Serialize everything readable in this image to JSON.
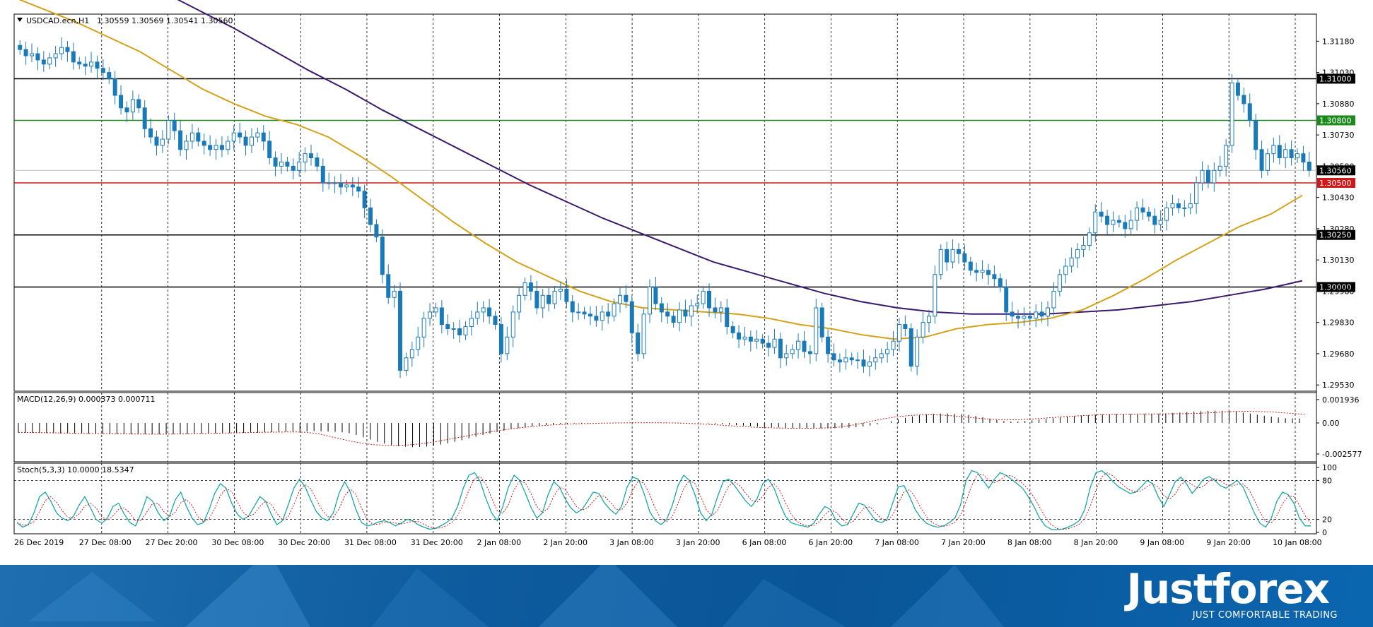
{
  "header": {
    "symbol_label": "USDCAD.ecn,H1",
    "ohlc": "1.30559 1.30569 1.30541 1.30560"
  },
  "chart_data": [
    {
      "type": "line",
      "panel": "price",
      "price_axis_ticks": [
        "1.31180",
        "1.31030",
        "1.30880",
        "1.30730",
        "1.30580",
        "1.30430",
        "1.30280",
        "1.30130",
        "1.29980",
        "1.29830",
        "1.29680",
        "1.29530"
      ],
      "ylim": [
        1.295,
        1.3131
      ],
      "levels": [
        {
          "value": 1.31,
          "label": "1.31000",
          "color": "#000000"
        },
        {
          "value": 1.308,
          "label": "1.30800",
          "color": "#1a8a1a"
        },
        {
          "value": 1.305,
          "label": "1.30500",
          "color": "#d01818"
        },
        {
          "value": 1.3025,
          "label": "1.30250",
          "color": "#000000"
        },
        {
          "value": 1.3,
          "label": "1.30000",
          "color": "#000000"
        }
      ],
      "current_price": {
        "value": 1.3056,
        "label": "1.30560"
      },
      "candle_color": "#1a7ab8",
      "close": [
        1.3114,
        1.3111,
        1.3112,
        1.3109,
        1.3107,
        1.311,
        1.3112,
        1.3115,
        1.3113,
        1.3108,
        1.3107,
        1.3106,
        1.3108,
        1.3105,
        1.3103,
        1.31,
        1.3092,
        1.3086,
        1.3084,
        1.309,
        1.3086,
        1.3076,
        1.3072,
        1.3068,
        1.3071,
        1.308,
        1.3075,
        1.3066,
        1.307,
        1.3074,
        1.307,
        1.3068,
        1.3066,
        1.3068,
        1.3066,
        1.307,
        1.3074,
        1.3072,
        1.3068,
        1.3072,
        1.3074,
        1.307,
        1.3062,
        1.3058,
        1.306,
        1.3058,
        1.3056,
        1.306,
        1.3064,
        1.3062,
        1.3058,
        1.305,
        1.305,
        1.305,
        1.3048,
        1.3049,
        1.3048,
        1.3046,
        1.3038,
        1.303,
        1.3024,
        1.3006,
        1.2995,
        1.2998,
        1.296,
        1.2966,
        1.297,
        1.2976,
        1.2985,
        1.2988,
        1.299,
        1.2982,
        1.298,
        1.298,
        1.2977,
        1.2981,
        1.2985,
        1.2988,
        1.299,
        1.2986,
        1.2982,
        1.2968,
        1.2976,
        1.2988,
        1.2996,
        1.3002,
        1.2998,
        1.299,
        1.2996,
        1.2992,
        1.2998,
        1.2999,
        1.2993,
        1.2988,
        1.2988,
        1.2987,
        1.2986,
        1.2984,
        1.2988,
        1.2986,
        1.2992,
        1.2996,
        1.2993,
        1.2978,
        1.2968,
        1.2987,
        1.3,
        1.2992,
        1.2988,
        1.2986,
        1.2983,
        1.2989,
        1.2986,
        1.2991,
        1.2992,
        1.2998,
        1.299,
        1.2988,
        1.299,
        1.2981,
        1.2978,
        1.2975,
        1.2976,
        1.2974,
        1.2975,
        1.2973,
        1.2971,
        1.2975,
        1.2966,
        1.2968,
        1.297,
        1.2974,
        1.2969,
        1.2968,
        1.299,
        1.2976,
        1.2968,
        1.2965,
        1.2964,
        1.2966,
        1.2965,
        1.2965,
        1.2962,
        1.2964,
        1.2966,
        1.2968,
        1.297,
        1.2974,
        1.2982,
        1.298,
        1.2962,
        1.2976,
        1.2983,
        1.2986,
        1.3006,
        1.3018,
        1.3012,
        1.3018,
        1.3016,
        1.3012,
        1.3008,
        1.3007,
        1.3008,
        1.3006,
        1.3004,
        1.3,
        1.2988,
        1.2986,
        1.2985,
        1.2986,
        1.2985,
        1.2988,
        1.2986,
        1.299,
        1.2998,
        1.3006,
        1.301,
        1.3014,
        1.3018,
        1.302,
        1.3026,
        1.3036,
        1.3034,
        1.303,
        1.3032,
        1.3031,
        1.3028,
        1.3032,
        1.3038,
        1.3036,
        1.3034,
        1.303,
        1.3032,
        1.3038,
        1.304,
        1.3038,
        1.3038,
        1.304,
        1.305,
        1.3056,
        1.305,
        1.3056,
        1.3058,
        1.3068,
        1.3098,
        1.3092,
        1.3088,
        1.308,
        1.3066,
        1.3056,
        1.3064,
        1.3068,
        1.3062,
        1.3066,
        1.3062,
        1.3064,
        1.306,
        1.3056
      ],
      "ma_slow": {
        "color": "#3b1a6e",
        "values": [
          1.3174,
          1.3166,
          1.3158,
          1.315,
          1.3142,
          1.3133,
          1.3124,
          1.3114,
          1.3104,
          1.3095,
          1.3085,
          1.3076,
          1.3067,
          1.3058,
          1.3049,
          1.3041,
          1.3033,
          1.3026,
          1.3019,
          1.3012,
          1.3007,
          1.3002,
          1.2997,
          1.2993,
          1.299,
          1.2988,
          1.2987,
          1.2987,
          1.2987,
          1.2988,
          1.2989,
          1.2991,
          1.2993,
          1.2996,
          1.2999,
          1.3003
        ]
      },
      "ma_fast": {
        "color": "#d4a21a",
        "values": [
          1.3139,
          1.3133,
          1.3127,
          1.312,
          1.3113,
          1.3104,
          1.3095,
          1.3088,
          1.3082,
          1.3078,
          1.3072,
          1.3063,
          1.3053,
          1.3042,
          1.3031,
          1.3021,
          1.3012,
          1.3005,
          1.2998,
          1.2993,
          1.299,
          1.2989,
          1.2988,
          1.2987,
          1.2985,
          1.2982,
          1.298,
          1.2977,
          1.2975,
          1.2976,
          1.298,
          1.2982,
          1.2983,
          1.2985,
          1.2989,
          1.2996,
          1.3004,
          1.3013,
          1.3021,
          1.3029,
          1.3035,
          1.3044
        ]
      }
    },
    {
      "type": "bar",
      "panel": "macd",
      "title": "MACD(12,26,9) 0.000373 0.000711",
      "axis_ticks": [
        "0.001936",
        "0.00",
        "-0.002577"
      ],
      "ylim": [
        -0.0031,
        0.0024
      ],
      "histogram_color": "#000000",
      "signal_color": "#c02020",
      "histogram": [
        -0.00082,
        -0.00082,
        -0.00083,
        -0.00083,
        -0.00084,
        -0.00085,
        -0.00086,
        -0.00087,
        -0.00087,
        -0.00088,
        -0.0009,
        -0.0009,
        -0.00091,
        -0.00093,
        -0.00093,
        -0.00094,
        -0.00094,
        -0.00094,
        -0.00094,
        -0.00095,
        -0.00095,
        -0.00094,
        -0.00094,
        -0.00093,
        -0.00092,
        -0.00091,
        -0.0009,
        -0.00088,
        -0.00086,
        -0.00085,
        -0.00084,
        -0.00083,
        -0.00082,
        -0.00081,
        -0.0008,
        -0.00078,
        -0.00076,
        -0.00074,
        -0.00072,
        -0.00071,
        -0.0007,
        -0.00069,
        -0.00068,
        -0.00069,
        -0.00071,
        -0.00074,
        -0.00078,
        -0.00085,
        -0.001,
        -0.00118,
        -0.00137,
        -0.00156,
        -0.00171,
        -0.00183,
        -0.00192,
        -0.00197,
        -0.002,
        -0.00199,
        -0.00195,
        -0.00188,
        -0.00179,
        -0.00168,
        -0.00156,
        -0.00143,
        -0.00129,
        -0.00114,
        -0.001,
        -0.00087,
        -0.00075,
        -0.00063,
        -0.00053,
        -0.00043,
        -0.00035,
        -0.00028,
        -0.00022,
        -0.00017,
        -0.00012,
        -9e-05,
        -6e-05,
        -4e-05,
        -3e-05,
        -2e-05,
        -1e-05,
        -1e-05,
        0.0,
        0.0,
        1e-05,
        1e-05,
        2e-05,
        2e-05,
        3e-05,
        3e-05,
        3e-05,
        2e-05,
        2e-05,
        1e-05,
        0.0,
        -2e-05,
        -4e-05,
        -7e-05,
        -0.0001,
        -0.00014,
        -0.00018,
        -0.00022,
        -0.00026,
        -0.0003,
        -0.00033,
        -0.00036,
        -0.00038,
        -0.0004,
        -0.00042,
        -0.00043,
        -0.00044,
        -0.00045,
        -0.00045,
        -0.00045,
        -0.00044,
        -0.00042,
        -0.00039,
        -0.00035,
        -0.0003,
        -0.00022,
        -0.00012,
        0.0,
        0.00014,
        0.00028,
        0.00042,
        0.00054,
        0.00064,
        0.00072,
        0.00076,
        0.00078,
        0.00078,
        0.00076,
        0.00072,
        0.00066,
        0.00058,
        0.00048,
        0.00036,
        0.00024,
        0.00016,
        0.00012,
        0.00012,
        0.00016,
        0.00022,
        0.00028,
        0.00034,
        0.0004,
        0.00046,
        0.00051,
        0.00056,
        0.0006,
        0.00064,
        0.00068,
        0.00071,
        0.00073,
        0.00074,
        0.00075,
        0.00075,
        0.00076,
        0.00076,
        0.00077,
        0.00078,
        0.0008,
        0.00083,
        0.00086,
        0.0009,
        0.00094,
        0.00098,
        0.00101,
        0.00102,
        0.00101,
        0.00098,
        0.00093,
        0.00086,
        0.00078,
        0.00069,
        0.0006,
        0.00052,
        0.00045,
        0.0004,
        0.00038,
        0.00037
      ],
      "signal": [
        -0.00078,
        -0.00079,
        -0.0008,
        -0.00081,
        -0.00083,
        -0.00085,
        -0.00087,
        -0.00088,
        -0.00089,
        -0.0009,
        -0.00091,
        -0.00092,
        -0.00093,
        -0.00093,
        -0.00092,
        -0.00091,
        -0.00089,
        -0.00087,
        -0.00085,
        -0.00083,
        -0.00081,
        -0.00079,
        -0.00077,
        -0.00076,
        -0.00075,
        -0.00075,
        -0.00078,
        -0.0009,
        -0.0011,
        -0.00132,
        -0.00152,
        -0.00168,
        -0.0018,
        -0.00186,
        -0.00187,
        -0.00183,
        -0.00175,
        -0.00163,
        -0.00148,
        -0.00131,
        -0.00114,
        -0.00097,
        -0.00081,
        -0.00066,
        -0.00053,
        -0.00042,
        -0.00032,
        -0.00024,
        -0.00017,
        -0.00012,
        -8e-05,
        -5e-05,
        -3e-05,
        -1e-05,
        0.0,
        1e-05,
        2e-05,
        2e-05,
        1e-05,
        0.0,
        -2e-05,
        -6e-05,
        -0.00011,
        -0.00017,
        -0.00023,
        -0.00029,
        -0.00034,
        -0.00038,
        -0.00041,
        -0.00043,
        -0.00044,
        -0.00044,
        -0.00043,
        -0.0004,
        -0.00033,
        -0.0002,
        -2e-05,
        0.00018,
        0.00036,
        0.0005,
        0.0006,
        0.00066,
        0.00068,
        0.00066,
        0.0006,
        0.00052,
        0.00043,
        0.00035,
        0.00029,
        0.00026,
        0.00027,
        0.00031,
        0.00037,
        0.00044,
        0.00051,
        0.00057,
        0.00062,
        0.00066,
        0.00069,
        0.00071,
        0.00073,
        0.00074,
        0.00075,
        0.00075,
        0.00076,
        0.00077,
        0.00079,
        0.00083,
        0.00088,
        0.00093,
        0.00096,
        0.00096,
        0.00094,
        0.0009,
        0.00084,
        0.00077,
        0.00071
      ]
    },
    {
      "type": "line",
      "panel": "stochastic",
      "title": "Stoch(5,3,3) 10.0000 18.5347",
      "axis_ticks": [
        "100",
        "80",
        "20",
        "0"
      ],
      "ylim": [
        0,
        100
      ],
      "levels": [
        80,
        20
      ],
      "main_color": "#1aa6a6",
      "signal_color": "#c02020",
      "main": [
        15,
        8,
        12,
        30,
        55,
        62,
        48,
        30,
        22,
        18,
        25,
        42,
        55,
        38,
        20,
        14,
        22,
        40,
        45,
        28,
        15,
        10,
        30,
        55,
        48,
        30,
        18,
        25,
        50,
        62,
        40,
        22,
        12,
        15,
        35,
        60,
        75,
        68,
        45,
        28,
        20,
        25,
        40,
        55,
        48,
        28,
        12,
        18,
        42,
        68,
        82,
        70,
        50,
        32,
        22,
        18,
        30,
        60,
        78,
        62,
        35,
        15,
        10,
        12,
        16,
        18,
        15,
        10,
        14,
        20,
        18,
        12,
        8,
        5,
        6,
        10,
        15,
        22,
        40,
        68,
        88,
        92,
        78,
        52,
        30,
        18,
        40,
        70,
        88,
        80,
        60,
        38,
        22,
        30,
        58,
        78,
        70,
        52,
        38,
        30,
        35,
        48,
        62,
        60,
        45,
        35,
        28,
        40,
        70,
        85,
        82,
        60,
        32,
        18,
        12,
        20,
        42,
        72,
        88,
        80,
        58,
        30,
        18,
        28,
        55,
        78,
        82,
        72,
        60,
        48,
        40,
        52,
        75,
        82,
        68,
        45,
        25,
        15,
        12,
        10,
        8,
        14,
        28,
        40,
        35,
        18,
        10,
        12,
        28,
        45,
        42,
        30,
        18,
        15,
        20,
        45,
        70,
        72,
        55,
        35,
        22,
        14,
        10,
        8,
        10,
        15,
        22,
        42,
        80,
        95,
        92,
        80,
        68,
        82,
        92,
        88,
        82,
        75,
        68,
        55,
        40,
        22,
        10,
        5,
        4,
        5,
        8,
        12,
        18,
        35,
        70,
        92,
        95,
        88,
        78,
        70,
        65,
        60,
        62,
        70,
        80,
        75,
        55,
        40,
        58,
        78,
        85,
        75,
        60,
        70,
        82,
        86,
        80,
        72,
        68,
        74,
        80,
        70,
        50,
        30,
        14,
        8,
        22,
        48,
        62,
        58,
        45,
        22,
        10,
        10
      ]
    }
  ],
  "time_axis": {
    "labels": [
      "26 Dec 2019",
      "27 Dec 08:00",
      "27 Dec 20:00",
      "30 Dec 08:00",
      "30 Dec 20:00",
      "31 Dec 08:00",
      "31 Dec 20:00",
      "2 Jan 08:00",
      "2 Jan 20:00",
      "3 Jan 08:00",
      "3 Jan 20:00",
      "6 Jan 08:00",
      "6 Jan 20:00",
      "7 Jan 08:00",
      "7 Jan 20:00",
      "8 Jan 08:00",
      "8 Jan 20:00",
      "9 Jan 08:00",
      "9 Jan 20:00",
      "10 Jan 08:00"
    ]
  },
  "banner": {
    "logo": "Justforex",
    "tagline": "JUST COMFORTABLE TRADING"
  }
}
